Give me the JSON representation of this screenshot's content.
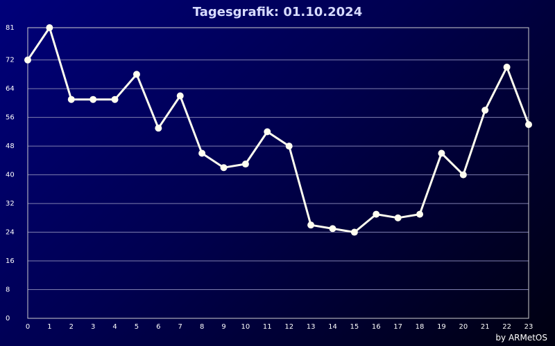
{
  "colors": {
    "line": "#fffef0",
    "grid": "#8080b0",
    "frame": "#d0d0d0"
  },
  "credit": "by ARMetOS",
  "chart_data": {
    "type": "line",
    "title": "Tagesgrafik: 01.10.2024",
    "xlabel": "",
    "ylabel": "",
    "x": [
      0,
      1,
      2,
      3,
      4,
      5,
      6,
      7,
      8,
      9,
      10,
      11,
      12,
      13,
      14,
      15,
      16,
      17,
      18,
      19,
      20,
      21,
      22,
      23
    ],
    "x_tick_labels": [
      "0",
      "1",
      "2",
      "3",
      "4",
      "5",
      "6",
      "7",
      "8",
      "9",
      "10",
      "11",
      "12",
      "13",
      "14",
      "15",
      "16",
      "17",
      "18",
      "19",
      "20",
      "21",
      "22",
      "23"
    ],
    "values": [
      72,
      81,
      61,
      61,
      61,
      68,
      53,
      62,
      46,
      42,
      43,
      52,
      48,
      26,
      25,
      24,
      29,
      28,
      29,
      46,
      40,
      58,
      70,
      54
    ],
    "ylim": [
      0,
      81
    ],
    "y_ticks": [
      0,
      8,
      16,
      24,
      32,
      40,
      48,
      56,
      64,
      72,
      81
    ],
    "y_tick_labels": [
      "0",
      "8",
      "16",
      "24",
      "32",
      "40",
      "48",
      "56",
      "64",
      "72",
      "81"
    ],
    "grid": true,
    "legend": "none"
  }
}
